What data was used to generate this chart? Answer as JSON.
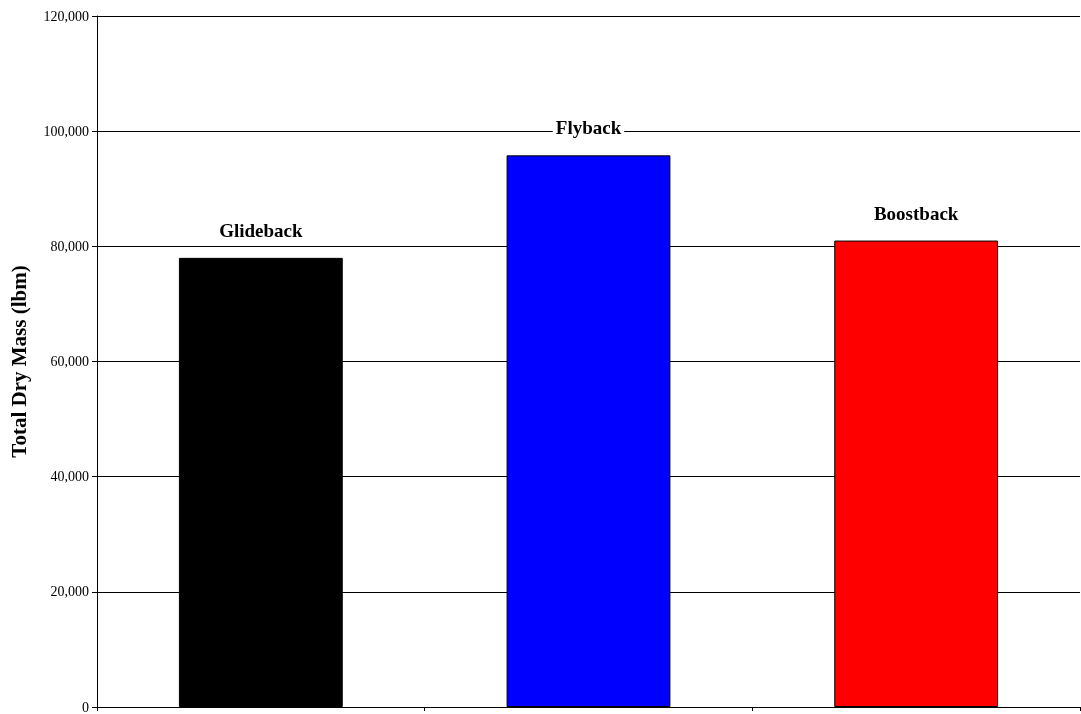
{
  "chart_data": {
    "type": "bar",
    "ylabel": "Total Dry Mass (lbm)",
    "categories": [
      "Glideback",
      "Flyback",
      "Boostback"
    ],
    "values": [
      78000,
      95800,
      81000
    ],
    "colors": [
      "#000000",
      "#0000ff",
      "#ff0000"
    ],
    "ylim": [
      0,
      120000
    ],
    "yticks": [
      0,
      {
        "value": 20000,
        "label": "20,000"
      },
      {
        "value": 40000,
        "label": "40,000"
      },
      {
        "value": 60000,
        "label": "60,000"
      },
      {
        "value": 80000,
        "label": "80,000"
      },
      {
        "value": 100000,
        "label": "100,000"
      },
      {
        "value": 120000,
        "label": "120,000"
      }
    ],
    "grid": "y"
  }
}
